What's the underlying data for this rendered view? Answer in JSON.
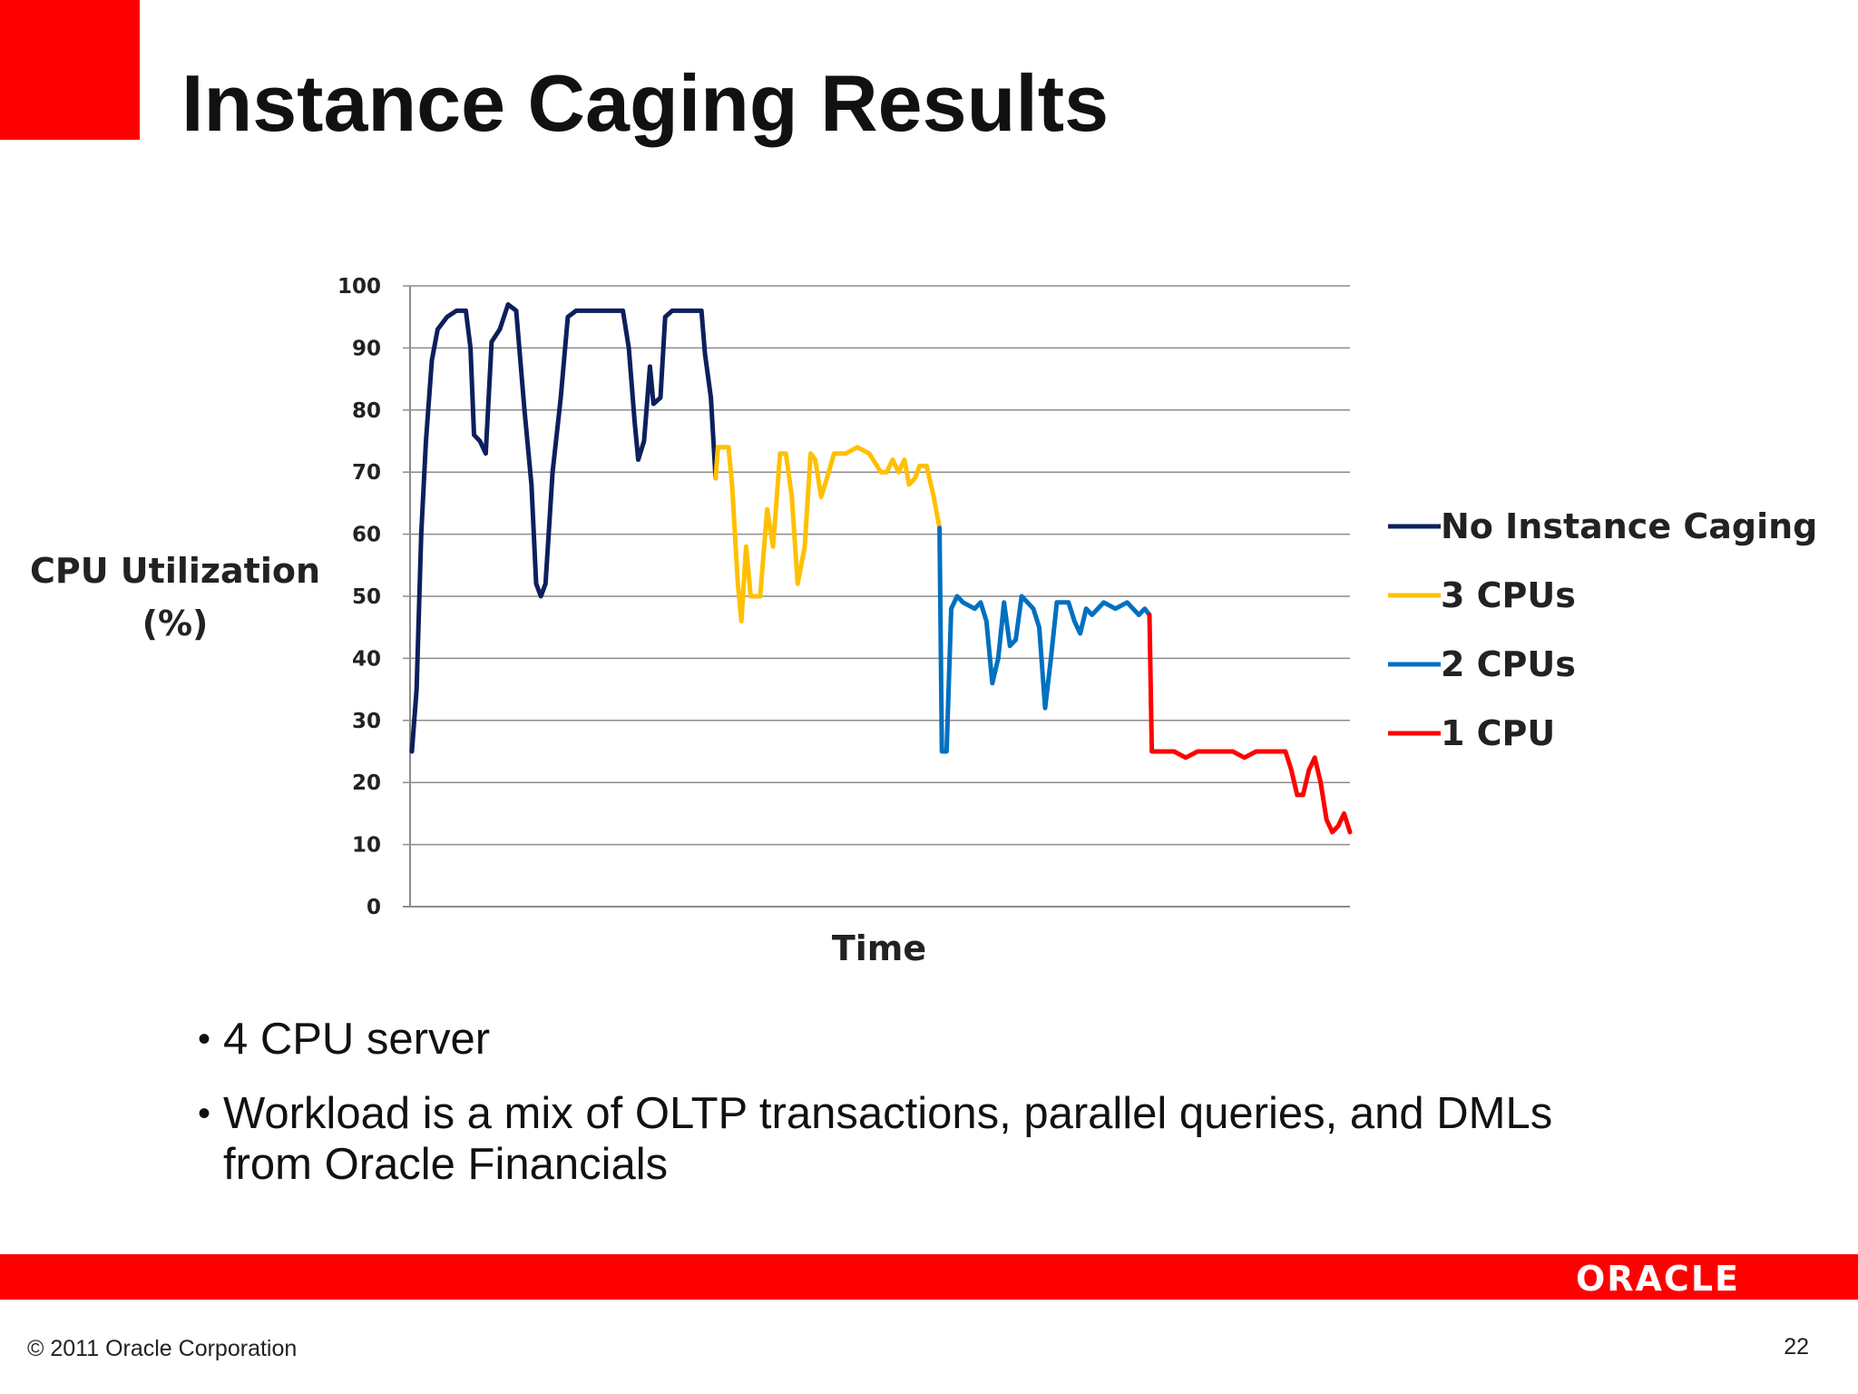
{
  "slide": {
    "title": "Instance Caging Results",
    "bullets": [
      "4 CPU server",
      "Workload is a mix of OLTP transactions, parallel queries, and DMLs from Oracle Financials"
    ],
    "logo_text": "ORACLE",
    "copyright": "© 2011 Oracle Corporation",
    "page_number": "22",
    "colors": {
      "accent_red": "#ff0000"
    }
  },
  "chart_data": {
    "type": "line",
    "title": "",
    "xlabel": "Time",
    "ylabel": "CPU Utilization (%)",
    "ylabel_lines": [
      "CPU Utilization",
      "(%)"
    ],
    "ylim": [
      0,
      100
    ],
    "yticks": [
      0,
      10,
      20,
      30,
      40,
      50,
      60,
      70,
      80,
      90,
      100
    ],
    "grid": "horizontal",
    "legend_position": "right",
    "series": [
      {
        "name": "No Instance Caging",
        "color": "#0d1f5c",
        "points": [
          [
            0,
            25
          ],
          [
            0.4,
            35
          ],
          [
            0.8,
            60
          ],
          [
            1.2,
            75
          ],
          [
            1.7,
            88
          ],
          [
            2.2,
            93
          ],
          [
            3.0,
            95
          ],
          [
            3.8,
            96
          ],
          [
            4.6,
            96
          ],
          [
            5.0,
            90
          ],
          [
            5.3,
            76
          ],
          [
            5.8,
            75
          ],
          [
            6.3,
            73
          ],
          [
            6.8,
            91
          ],
          [
            7.5,
            93
          ],
          [
            8.2,
            97
          ],
          [
            8.9,
            96
          ],
          [
            9.6,
            80
          ],
          [
            10.2,
            68
          ],
          [
            10.6,
            52
          ],
          [
            11.0,
            50
          ],
          [
            11.4,
            52
          ],
          [
            12.0,
            70
          ],
          [
            12.7,
            82
          ],
          [
            13.3,
            95
          ],
          [
            14.0,
            96
          ],
          [
            15.0,
            96
          ],
          [
            16.0,
            96
          ],
          [
            17.0,
            96
          ],
          [
            18.0,
            96
          ],
          [
            18.5,
            90
          ],
          [
            19.0,
            78
          ],
          [
            19.3,
            72
          ],
          [
            19.8,
            75
          ],
          [
            20.3,
            87
          ],
          [
            20.6,
            81
          ],
          [
            21.2,
            82
          ],
          [
            21.6,
            95
          ],
          [
            22.2,
            96
          ],
          [
            23.0,
            96
          ],
          [
            24.0,
            96
          ],
          [
            24.7,
            96
          ],
          [
            25.0,
            89
          ],
          [
            25.5,
            82
          ],
          [
            25.9,
            69
          ]
        ]
      },
      {
        "name": "3 CPUs",
        "color": "#ffc000",
        "points": [
          [
            25.9,
            69
          ],
          [
            26.1,
            74
          ],
          [
            27.0,
            74
          ],
          [
            27.3,
            68
          ],
          [
            27.8,
            52
          ],
          [
            28.1,
            46
          ],
          [
            28.5,
            58
          ],
          [
            28.9,
            50
          ],
          [
            29.7,
            50
          ],
          [
            30.3,
            64
          ],
          [
            30.8,
            58
          ],
          [
            31.4,
            73
          ],
          [
            31.9,
            73
          ],
          [
            32.4,
            66
          ],
          [
            32.9,
            52
          ],
          [
            33.5,
            58
          ],
          [
            34.0,
            73
          ],
          [
            34.4,
            72
          ],
          [
            34.9,
            66
          ],
          [
            35.4,
            69
          ],
          [
            36.0,
            73
          ],
          [
            37.0,
            73
          ],
          [
            38.0,
            74
          ],
          [
            39.0,
            73
          ],
          [
            40.0,
            70
          ],
          [
            40.5,
            70
          ],
          [
            41.0,
            72
          ],
          [
            41.5,
            70
          ],
          [
            42.0,
            72
          ],
          [
            42.4,
            68
          ],
          [
            42.9,
            69
          ],
          [
            43.3,
            71
          ],
          [
            43.9,
            71
          ],
          [
            44.5,
            66
          ],
          [
            45.0,
            61
          ]
        ]
      },
      {
        "name": "2 CPUs",
        "color": "#0070c0",
        "points": [
          [
            45.0,
            61
          ],
          [
            45.2,
            25
          ],
          [
            45.6,
            25
          ],
          [
            46.0,
            48
          ],
          [
            46.5,
            50
          ],
          [
            47.0,
            49
          ],
          [
            48.0,
            48
          ],
          [
            48.5,
            49
          ],
          [
            49.0,
            46
          ],
          [
            49.5,
            36
          ],
          [
            50.0,
            40
          ],
          [
            50.5,
            49
          ],
          [
            51.0,
            42
          ],
          [
            51.5,
            43
          ],
          [
            52.0,
            50
          ],
          [
            52.5,
            49
          ],
          [
            53.0,
            48
          ],
          [
            53.5,
            45
          ],
          [
            54.0,
            32
          ],
          [
            54.5,
            40
          ],
          [
            55.0,
            49
          ],
          [
            56.0,
            49
          ],
          [
            56.5,
            46
          ],
          [
            57.0,
            44
          ],
          [
            57.5,
            48
          ],
          [
            58.0,
            47
          ],
          [
            59.0,
            49
          ],
          [
            60.0,
            48
          ],
          [
            61.0,
            49
          ],
          [
            61.5,
            48
          ],
          [
            62.0,
            47
          ],
          [
            62.5,
            48
          ],
          [
            62.9,
            47
          ]
        ]
      },
      {
        "name": "1 CPU",
        "color": "#ff0000",
        "points": [
          [
            62.9,
            47
          ],
          [
            63.1,
            25
          ],
          [
            64.0,
            25
          ],
          [
            65.0,
            25
          ],
          [
            66.0,
            24
          ],
          [
            67.0,
            25
          ],
          [
            68.0,
            25
          ],
          [
            69.0,
            25
          ],
          [
            70.0,
            25
          ],
          [
            71.0,
            24
          ],
          [
            72.0,
            25
          ],
          [
            73.0,
            25
          ],
          [
            74.0,
            25
          ],
          [
            74.5,
            25
          ],
          [
            75.0,
            22
          ],
          [
            75.5,
            18
          ],
          [
            76.0,
            18
          ],
          [
            76.5,
            22
          ],
          [
            77.0,
            24
          ],
          [
            77.5,
            20
          ],
          [
            78.0,
            14
          ],
          [
            78.5,
            12
          ],
          [
            79.0,
            13
          ],
          [
            79.5,
            15
          ],
          [
            80.0,
            12
          ]
        ]
      }
    ]
  }
}
